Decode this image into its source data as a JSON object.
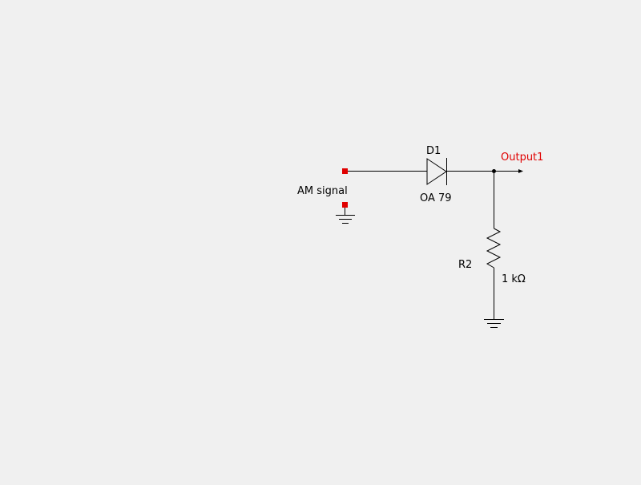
{
  "schematic": {
    "input": {
      "label": "AM signal"
    },
    "diode": {
      "designator": "D1",
      "value": "OA 79"
    },
    "resistor": {
      "designator": "R2",
      "value": "1 kΩ"
    },
    "output": {
      "label": "Output1"
    }
  },
  "colors": {
    "background": "#f0f0f0",
    "wire": "#000000",
    "terminal": "#e00000",
    "output_label": "#e00000",
    "text": "#000000"
  }
}
